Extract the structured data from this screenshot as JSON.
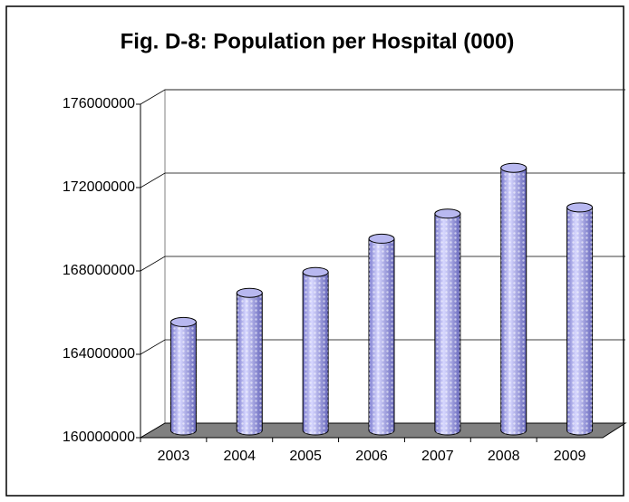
{
  "chart_data": {
    "type": "bar3d",
    "title": "Fig. D-8: Population per Hospital (000)",
    "categories": [
      "2003",
      "2004",
      "2005",
      "2006",
      "2007",
      "2008",
      "2009"
    ],
    "values": [
      165200000,
      166600000,
      167600000,
      169200000,
      170400000,
      172600000,
      170700000
    ],
    "color": "#9999ff",
    "ylim": [
      160000000,
      176000000
    ],
    "yticks": [
      160000000,
      164000000,
      168000000,
      172000000,
      176000000
    ],
    "grid": true
  }
}
